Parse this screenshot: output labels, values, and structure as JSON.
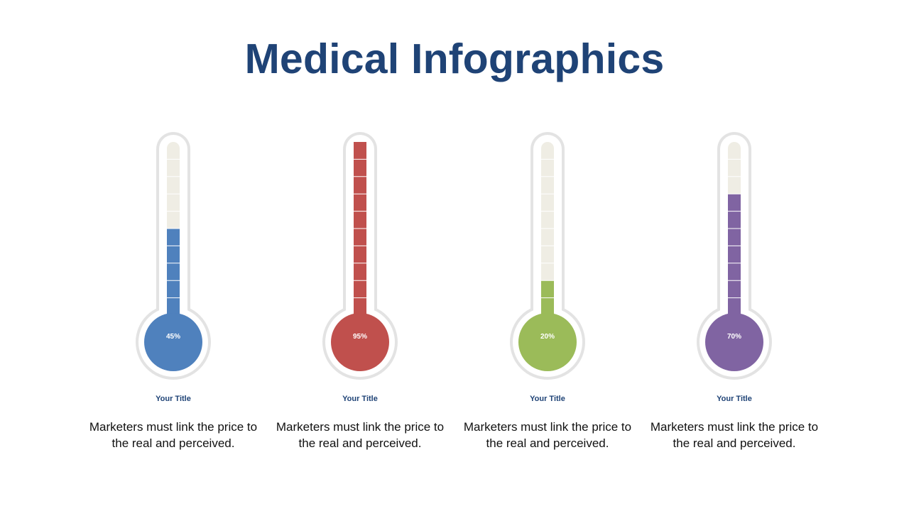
{
  "title": "Medical Infographics",
  "colors": {
    "title": "#1f4376",
    "outline": "#e3e3e3",
    "empty_fill": "#efede4",
    "segment_divider": "#ffffff"
  },
  "items": [
    {
      "percent_label": "45%",
      "level": 0.45,
      "color": "#4f81bd",
      "title": "Your Title",
      "description": "Marketers must link the price to the real and perceived."
    },
    {
      "percent_label": "95%",
      "level": 0.95,
      "color": "#c0504d",
      "title": "Your Title",
      "description": "Marketers must link the price to the real and perceived."
    },
    {
      "percent_label": "20%",
      "level": 0.2,
      "color": "#9bbb59",
      "title": "Your Title",
      "description": "Marketers must link the price to the real and perceived."
    },
    {
      "percent_label": "70%",
      "level": 0.7,
      "color": "#8064a2",
      "title": "Your Title",
      "description": "Marketers must link the price to the real and perceived."
    }
  ]
}
